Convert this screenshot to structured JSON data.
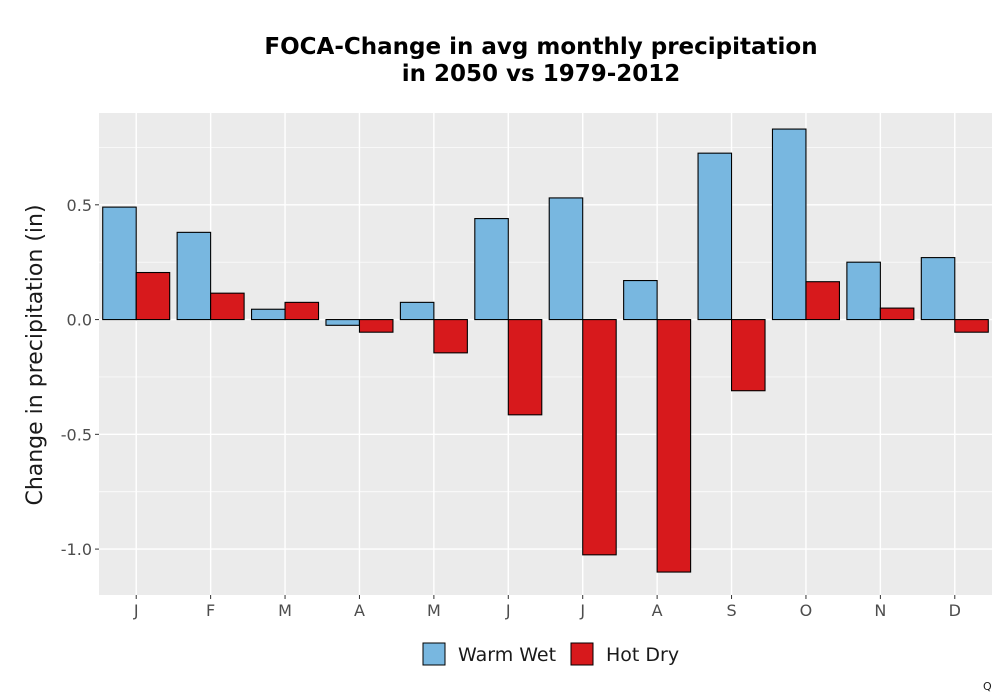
{
  "chart_data": {
    "type": "bar",
    "title_lines": [
      "FOCA-Change in avg monthly precipitation",
      "in 2050 vs 1979-2012"
    ],
    "xlabel": "",
    "ylabel": "Change in precipitation (in)",
    "categories": [
      "J",
      "F",
      "M",
      "A",
      "M",
      "J",
      "J",
      "A",
      "S",
      "O",
      "N",
      "D"
    ],
    "series": [
      {
        "name": "Warm Wet",
        "color": "#78B7E0",
        "values": [
          0.49,
          0.38,
          0.045,
          -0.025,
          0.075,
          0.44,
          0.53,
          0.17,
          0.725,
          0.83,
          0.25,
          0.27
        ]
      },
      {
        "name": "Hot Dry",
        "color": "#D7191C",
        "values": [
          0.205,
          0.115,
          0.075,
          -0.055,
          -0.145,
          -0.415,
          -1.025,
          -1.1,
          -0.31,
          0.165,
          0.05,
          -0.055
        ]
      }
    ],
    "ylim": [
      -1.2,
      0.9
    ],
    "yticks": [
      -1.0,
      -0.5,
      0.0,
      0.5
    ],
    "ytick_labels": [
      "-1.0",
      "-0.5",
      "0.0",
      "0.5"
    ],
    "grid": true,
    "panel_background": "#EBEBEB",
    "legend_position": "bottom",
    "corner_mark": "Q"
  }
}
